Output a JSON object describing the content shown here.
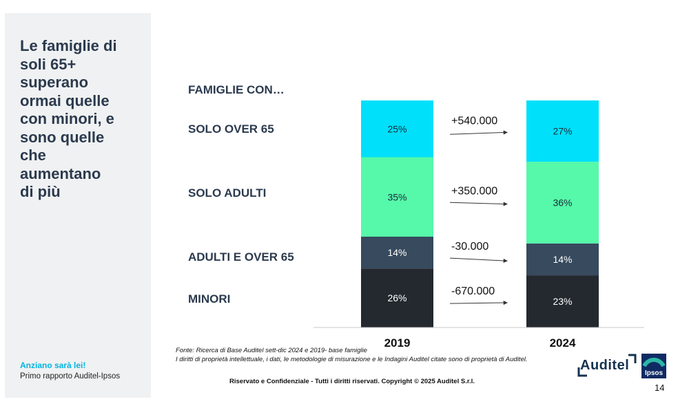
{
  "side": {
    "title": "Le famiglie di\nsoli 65+\nsuperano\normai  quelle\ncon minori, e\nsono quelle\nche\naumentano\ndi più",
    "subtitle1": "Anziano sarà lei!",
    "subtitle2": "Primo rapporto Auditel-Ipsos"
  },
  "chart_data": {
    "type": "bar",
    "stacked": true,
    "title": "FAMIGLIE CON…",
    "categories": [
      "2019",
      "2024"
    ],
    "series": [
      {
        "name": "MINORI",
        "values": [
          26,
          23
        ],
        "labels": [
          "26%",
          "23%"
        ],
        "change": "-670.000",
        "color": "#23292f",
        "text_color": "#ffffff"
      },
      {
        "name": "ADULTI E OVER 65",
        "values": [
          14,
          14
        ],
        "labels": [
          "14%",
          "14%"
        ],
        "change": "-30.000",
        "color": "#374a5e",
        "text_color": "#ffffff"
      },
      {
        "name": "SOLO ADULTI",
        "values": [
          35,
          36
        ],
        "labels": [
          "35%",
          "36%"
        ],
        "change": "+350.000",
        "color": "#55f9a9",
        "text_color": "#1a2a3a"
      },
      {
        "name": "SOLO OVER 65",
        "values": [
          25,
          27
        ],
        "labels": [
          "25%",
          "27%"
        ],
        "change": "+540.000",
        "color": "#00e0fa",
        "text_color": "#1a2a3a"
      }
    ],
    "ylim": [
      0,
      100
    ],
    "grid": false,
    "legend": "left"
  },
  "footer": {
    "source": "Fonte: Ricerca di Base Auditel sett-dic 2024 e 2019- base famiglie",
    "rights": "I diritti di proprietà intellettuale, i dati, le metodologie di misurazione e le Indagini Auditel citate sono di proprietà di Auditel.",
    "copyright": "Riservato e Confidenziale - Tutti i diritti riservati. Copyright © 2025 Auditel S.r.l.",
    "page": "14"
  },
  "logos": {
    "auditel": "Auditel",
    "ipsos": "Ipsos"
  },
  "colors": {
    "title_navy": "#2b3a4e",
    "accent_cyan": "#00b5e2",
    "panel_gray": "#f0f1f2"
  }
}
